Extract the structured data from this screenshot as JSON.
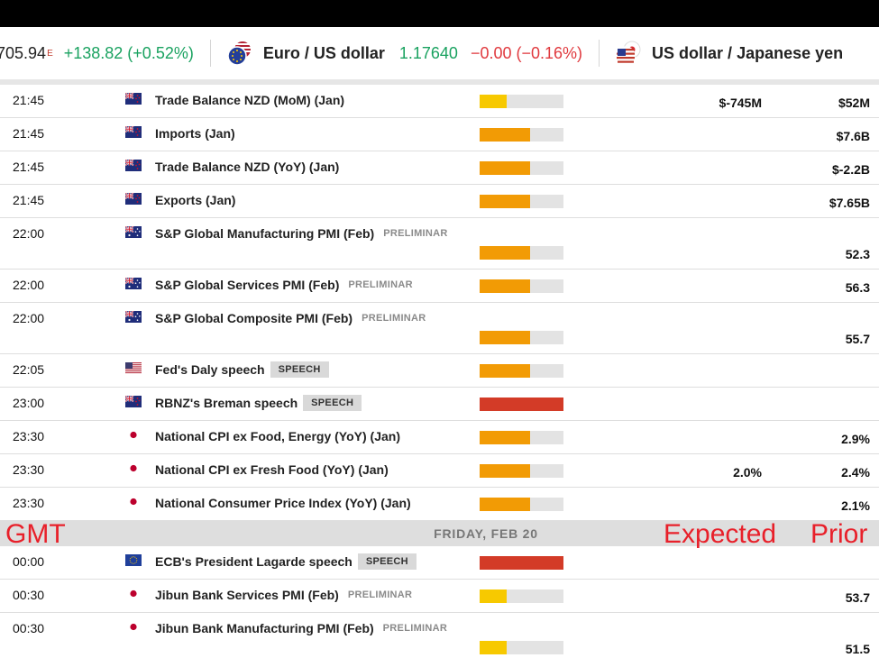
{
  "ticker": [
    {
      "kind": "index",
      "price": "705.94",
      "sup": "E",
      "change": "+138.82 (+0.52%)"
    },
    {
      "kind": "pair",
      "icon": "eu-us-flags-icon",
      "name": "Euro / US dollar",
      "value": "1.17640",
      "change": "−0.00 (−0.16%)"
    },
    {
      "kind": "pair",
      "icon": "us-jp-flags-icon",
      "name": "US dollar / Japanese yen"
    }
  ],
  "colors": {
    "low": "#f7c900",
    "medium": "#f29b05",
    "high": "#d33b27",
    "track": "#e3e3e3",
    "annotation": "#e8202a"
  },
  "events_before": [
    {
      "time": "21:45",
      "flag": "nz",
      "name": "Trade Balance NZD (MoM) (Jan)",
      "tag": "",
      "tag_type": "",
      "impact": "low",
      "expected": "$-745M",
      "prior": "$52M",
      "tall": false
    },
    {
      "time": "21:45",
      "flag": "nz",
      "name": "Imports (Jan)",
      "tag": "",
      "tag_type": "",
      "impact": "medium",
      "expected": "",
      "prior": "$7.6B",
      "tall": false
    },
    {
      "time": "21:45",
      "flag": "nz",
      "name": "Trade Balance NZD (YoY) (Jan)",
      "tag": "",
      "tag_type": "",
      "impact": "medium",
      "expected": "",
      "prior": "$-2.2B",
      "tall": false
    },
    {
      "time": "21:45",
      "flag": "nz",
      "name": "Exports (Jan)",
      "tag": "",
      "tag_type": "",
      "impact": "medium",
      "expected": "",
      "prior": "$7.65B",
      "tall": false
    },
    {
      "time": "22:00",
      "flag": "au",
      "name": "S&P Global Manufacturing PMI (Feb)",
      "tag": "PRELIMINAR",
      "tag_type": "pre",
      "impact": "medium",
      "expected": "",
      "prior": "52.3",
      "tall": true
    },
    {
      "time": "22:00",
      "flag": "au",
      "name": "S&P Global Services PMI (Feb)",
      "tag": "PRELIMINAR",
      "tag_type": "pre",
      "impact": "medium",
      "expected": "",
      "prior": "56.3",
      "tall": false
    },
    {
      "time": "22:00",
      "flag": "au",
      "name": "S&P Global Composite PMI (Feb)",
      "tag": "PRELIMINAR",
      "tag_type": "pre",
      "impact": "medium",
      "expected": "",
      "prior": "55.7",
      "tall": true
    },
    {
      "time": "22:05",
      "flag": "us",
      "name": "Fed's Daly speech",
      "tag": "SPEECH",
      "tag_type": "speech",
      "impact": "medium",
      "expected": "",
      "prior": "",
      "tall": false
    },
    {
      "time": "23:00",
      "flag": "nz",
      "name": "RBNZ's Breman speech",
      "tag": "SPEECH",
      "tag_type": "speech",
      "impact": "high",
      "expected": "",
      "prior": "",
      "tall": false
    },
    {
      "time": "23:30",
      "flag": "jp",
      "name": "National CPI ex Food, Energy (YoY) (Jan)",
      "tag": "",
      "tag_type": "",
      "impact": "medium",
      "expected": "",
      "prior": "2.9%",
      "tall": false
    },
    {
      "time": "23:30",
      "flag": "jp",
      "name": "National CPI ex Fresh Food (YoY) (Jan)",
      "tag": "",
      "tag_type": "",
      "impact": "medium",
      "expected": "2.0%",
      "prior": "2.4%",
      "tall": false
    },
    {
      "time": "23:30",
      "flag": "jp",
      "name": "National Consumer Price Index (YoY) (Jan)",
      "tag": "",
      "tag_type": "",
      "impact": "medium",
      "expected": "",
      "prior": "2.1%",
      "tall": false
    }
  ],
  "day_header": {
    "label": "FRIDAY, FEB 20"
  },
  "annotations": {
    "gmt": "GMT",
    "expected": "Expected",
    "prior": "Prior"
  },
  "events_after": [
    {
      "time": "00:00",
      "flag": "eu",
      "name": "ECB's President Lagarde speech",
      "tag": "SPEECH",
      "tag_type": "speech",
      "impact": "high",
      "expected": "",
      "prior": "",
      "tall": false
    },
    {
      "time": "00:30",
      "flag": "jp",
      "name": "Jibun Bank Services PMI (Feb)",
      "tag": "PRELIMINAR",
      "tag_type": "pre",
      "impact": "low",
      "expected": "",
      "prior": "53.7",
      "tall": false
    },
    {
      "time": "00:30",
      "flag": "jp",
      "name": "Jibun Bank Manufacturing PMI (Feb)",
      "tag": "PRELIMINAR",
      "tag_type": "pre",
      "impact": "low",
      "expected": "",
      "prior": "51.5",
      "tall": true
    }
  ]
}
